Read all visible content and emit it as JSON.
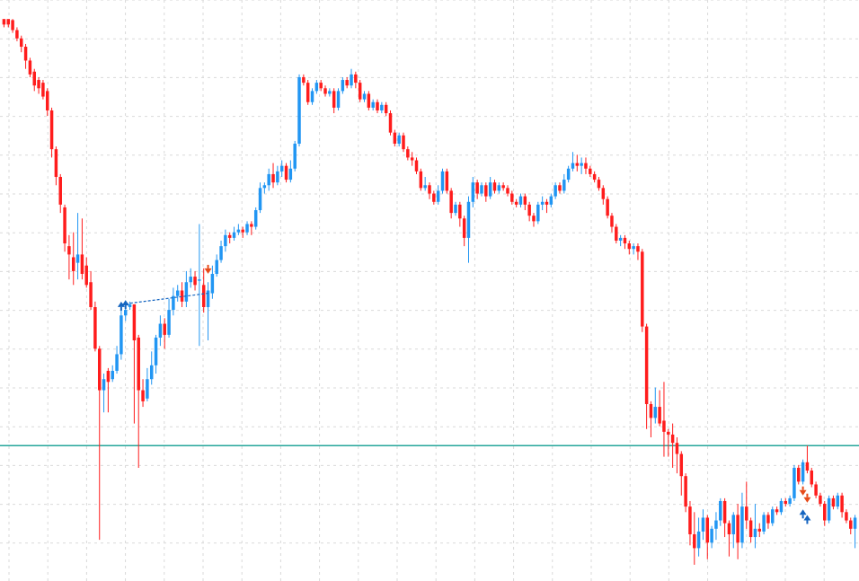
{
  "colors": {
    "background": "#ffffff",
    "grid": "#d9d9d9",
    "bull": "#2196f3",
    "bear": "#ff1c1c",
    "level_line": "#26a69a",
    "trade_line": "#1565c0",
    "buy_marker": "#1565c0",
    "sell_marker": "#e64a19"
  },
  "chart_data": {
    "type": "candlestick",
    "title": "",
    "xlabel": "",
    "ylabel": "",
    "grid": true,
    "y_range": [
      0.0,
      100.0
    ],
    "horizontal_level": 22.0,
    "candles": [
      [
        99.0,
        98.0,
        97.5,
        98.5
      ],
      [
        99.0,
        98.0,
        97.5,
        98.8
      ],
      [
        98.8,
        97.0,
        96.5,
        99.0
      ],
      [
        97.0,
        95.5,
        95.0,
        97.5
      ],
      [
        95.5,
        94.0,
        93.0,
        96.0
      ],
      [
        94.0,
        91.5,
        90.0,
        94.5
      ],
      [
        91.5,
        89.0,
        88.5,
        92.0
      ],
      [
        89.5,
        87.0,
        86.0,
        90.0
      ],
      [
        88.0,
        86.5,
        85.5,
        88.5
      ],
      [
        87.5,
        85.0,
        84.5,
        88.0
      ],
      [
        86.0,
        82.5,
        81.5,
        86.5
      ],
      [
        82.5,
        75.5,
        74.0,
        83.0
      ],
      [
        75.5,
        70.5,
        69.0,
        76.0
      ],
      [
        70.5,
        65.5,
        64.0,
        71.0
      ],
      [
        65.0,
        58.5,
        57.0,
        65.5
      ],
      [
        58.0,
        56.5,
        52.0,
        60.0
      ],
      [
        56.0,
        53.5,
        51.0,
        60.5
      ],
      [
        55.0,
        56.5,
        52.0,
        64.0
      ],
      [
        56.5,
        53.0,
        52.0,
        63.0
      ],
      [
        54.5,
        51.0,
        50.5,
        56.0
      ],
      [
        51.5,
        47.0,
        46.5,
        53.5
      ],
      [
        47.0,
        39.5,
        39.0,
        48.0
      ],
      [
        39.5,
        32.0,
        5.0,
        40.0
      ],
      [
        32.0,
        34.0,
        28.0,
        35.0
      ],
      [
        35.5,
        33.5,
        28.0,
        36.0
      ],
      [
        34.0,
        35.5,
        33.5,
        36.5
      ],
      [
        35.5,
        38.5,
        35.0,
        40.0
      ],
      [
        38.5,
        45.5,
        37.5,
        47.0
      ],
      [
        45.5,
        46.5,
        44.5,
        47.0
      ],
      [
        47.0,
        47.5,
        46.5,
        48.0
      ],
      [
        47.5,
        41.0,
        26.0,
        47.5
      ],
      [
        41.5,
        32.0,
        18.0,
        42.0
      ],
      [
        32.0,
        30.0,
        29.0,
        34.0
      ],
      [
        30.5,
        34.0,
        30.0,
        36.0
      ],
      [
        34.0,
        36.5,
        33.0,
        39.0
      ],
      [
        36.5,
        41.5,
        35.0,
        42.0
      ],
      [
        41.5,
        44.0,
        40.0,
        45.5
      ],
      [
        44.0,
        42.0,
        39.5,
        45.0
      ],
      [
        42.0,
        46.5,
        41.5,
        48.5
      ],
      [
        46.5,
        49.0,
        45.5,
        50.5
      ],
      [
        49.0,
        50.0,
        48.0,
        51.0
      ],
      [
        50.0,
        48.0,
        47.0,
        51.5
      ],
      [
        48.0,
        51.5,
        47.0,
        53.5
      ],
      [
        51.5,
        52.5,
        50.5,
        54.0
      ],
      [
        52.5,
        51.0,
        50.0,
        53.5
      ],
      [
        52.0,
        52.0,
        40.0,
        62.0
      ],
      [
        51.0,
        47.0,
        46.0,
        54.0
      ],
      [
        47.0,
        50.0,
        41.0,
        51.5
      ],
      [
        49.5,
        53.0,
        48.5,
        54.5
      ],
      [
        53.0,
        55.5,
        52.5,
        56.5
      ],
      [
        55.5,
        58.0,
        55.0,
        59.0
      ],
      [
        58.0,
        60.0,
        57.0,
        61.0
      ],
      [
        60.0,
        59.5,
        58.5,
        60.5
      ],
      [
        59.5,
        60.5,
        59.0,
        61.5
      ],
      [
        60.5,
        61.0,
        60.0,
        62.0
      ],
      [
        61.0,
        60.5,
        59.5,
        61.5
      ],
      [
        60.5,
        62.0,
        60.0,
        62.5
      ],
      [
        62.0,
        61.5,
        60.0,
        62.5
      ],
      [
        61.5,
        64.5,
        61.0,
        65.0
      ],
      [
        64.5,
        68.5,
        64.0,
        69.5
      ],
      [
        68.5,
        69.0,
        67.5,
        69.5
      ],
      [
        69.0,
        71.0,
        68.0,
        72.0
      ],
      [
        71.0,
        69.5,
        68.5,
        73.0
      ],
      [
        69.5,
        71.5,
        69.0,
        72.5
      ],
      [
        71.5,
        72.5,
        70.5,
        73.5
      ],
      [
        72.5,
        70.0,
        69.5,
        73.0
      ],
      [
        70.0,
        72.0,
        69.5,
        73.5
      ],
      [
        72.0,
        76.5,
        71.5,
        77.0
      ],
      [
        76.5,
        88.5,
        76.0,
        89.0
      ],
      [
        88.5,
        87.5,
        87.0,
        89.0
      ],
      [
        87.5,
        84.0,
        83.5,
        88.0
      ],
      [
        84.0,
        86.0,
        83.5,
        86.5
      ],
      [
        86.0,
        87.5,
        85.5,
        88.0
      ],
      [
        87.5,
        86.5,
        86.0,
        88.0
      ],
      [
        86.5,
        85.5,
        85.0,
        87.0
      ],
      [
        85.5,
        86.0,
        85.0,
        86.5
      ],
      [
        86.0,
        83.0,
        82.0,
        86.5
      ],
      [
        83.0,
        86.0,
        82.5,
        86.5
      ],
      [
        86.0,
        88.0,
        85.5,
        88.5
      ],
      [
        88.0,
        87.0,
        86.5,
        88.5
      ],
      [
        87.0,
        89.0,
        86.5,
        90.0
      ],
      [
        89.0,
        87.5,
        86.5,
        89.5
      ],
      [
        87.5,
        84.5,
        84.0,
        88.0
      ],
      [
        84.5,
        85.5,
        84.0,
        86.0
      ],
      [
        85.5,
        83.0,
        82.5,
        86.0
      ],
      [
        83.0,
        84.0,
        82.5,
        84.5
      ],
      [
        84.0,
        82.5,
        82.0,
        84.5
      ],
      [
        82.5,
        83.5,
        82.0,
        84.0
      ],
      [
        83.5,
        82.0,
        81.5,
        84.0
      ],
      [
        82.0,
        78.5,
        78.0,
        82.5
      ],
      [
        78.5,
        76.5,
        76.0,
        79.0
      ],
      [
        76.5,
        78.0,
        76.0,
        78.5
      ],
      [
        78.0,
        75.5,
        75.0,
        78.5
      ],
      [
        75.5,
        74.0,
        73.5,
        76.0
      ],
      [
        74.0,
        73.5,
        72.5,
        75.0
      ],
      [
        73.5,
        71.5,
        71.0,
        74.0
      ],
      [
        71.5,
        68.5,
        68.0,
        72.0
      ],
      [
        68.5,
        69.0,
        68.0,
        70.5
      ],
      [
        69.0,
        67.5,
        66.5,
        69.5
      ],
      [
        67.5,
        66.0,
        65.5,
        68.0
      ],
      [
        66.0,
        68.0,
        65.5,
        69.0
      ],
      [
        68.0,
        71.5,
        67.5,
        72.0
      ],
      [
        71.5,
        68.0,
        67.5,
        72.0
      ],
      [
        68.0,
        64.0,
        63.0,
        68.5
      ],
      [
        64.0,
        65.5,
        63.5,
        66.0
      ],
      [
        65.5,
        63.0,
        61.5,
        66.0
      ],
      [
        63.0,
        59.5,
        58.0,
        63.5
      ],
      [
        59.5,
        66.0,
        55.0,
        67.0
      ],
      [
        66.0,
        69.5,
        65.0,
        70.5
      ],
      [
        69.5,
        67.5,
        66.5,
        70.0
      ],
      [
        67.5,
        69.0,
        67.0,
        69.5
      ],
      [
        69.0,
        67.0,
        66.0,
        69.5
      ],
      [
        67.0,
        69.5,
        66.5,
        70.5
      ],
      [
        69.5,
        68.0,
        67.5,
        70.0
      ],
      [
        68.0,
        69.0,
        67.5,
        69.5
      ],
      [
        69.0,
        68.5,
        68.0,
        69.5
      ],
      [
        68.5,
        67.5,
        67.0,
        69.0
      ],
      [
        67.5,
        66.0,
        65.5,
        68.0
      ],
      [
        66.0,
        65.5,
        65.0,
        66.5
      ],
      [
        65.5,
        67.0,
        65.0,
        67.5
      ],
      [
        67.0,
        65.5,
        64.5,
        67.5
      ],
      [
        65.5,
        63.5,
        62.5,
        66.0
      ],
      [
        63.5,
        62.5,
        61.5,
        64.0
      ],
      [
        62.5,
        65.5,
        62.0,
        66.0
      ],
      [
        65.5,
        66.0,
        64.5,
        67.0
      ],
      [
        66.0,
        65.5,
        64.0,
        66.5
      ],
      [
        65.5,
        67.0,
        65.0,
        67.5
      ],
      [
        67.0,
        69.0,
        66.5,
        69.5
      ],
      [
        69.0,
        68.0,
        67.5,
        69.5
      ],
      [
        68.0,
        70.0,
        67.5,
        71.0
      ],
      [
        70.0,
        72.0,
        69.5,
        72.5
      ],
      [
        72.0,
        73.0,
        71.5,
        75.0
      ],
      [
        73.0,
        72.5,
        71.5,
        74.5
      ],
      [
        72.5,
        73.0,
        71.0,
        74.0
      ],
      [
        73.0,
        72.0,
        71.0,
        74.0
      ],
      [
        72.0,
        71.0,
        70.5,
        72.5
      ],
      [
        71.0,
        70.0,
        69.5,
        71.5
      ],
      [
        70.0,
        68.5,
        68.0,
        70.5
      ],
      [
        68.5,
        66.5,
        65.5,
        69.0
      ],
      [
        66.5,
        63.5,
        63.0,
        67.0
      ],
      [
        63.5,
        61.5,
        60.5,
        64.0
      ],
      [
        61.5,
        59.0,
        58.5,
        62.0
      ],
      [
        59.0,
        59.5,
        58.0,
        60.0
      ],
      [
        59.5,
        58.5,
        57.5,
        60.0
      ],
      [
        58.5,
        57.5,
        56.5,
        59.0
      ],
      [
        57.5,
        58.0,
        56.5,
        58.5
      ],
      [
        58.0,
        57.0,
        55.5,
        58.5
      ],
      [
        57.0,
        43.5,
        42.5,
        57.5
      ],
      [
        43.5,
        29.5,
        25.0,
        44.0
      ],
      [
        29.5,
        27.0,
        23.5,
        30.0
      ],
      [
        27.0,
        29.0,
        26.0,
        32.5
      ],
      [
        29.0,
        26.0,
        25.5,
        32.0
      ],
      [
        26.5,
        24.5,
        20.0,
        33.5
      ],
      [
        24.5,
        24.0,
        20.0,
        25.0
      ],
      [
        24.0,
        22.5,
        18.0,
        26.0
      ],
      [
        22.5,
        20.5,
        17.0,
        23.5
      ],
      [
        20.5,
        16.5,
        13.0,
        21.0
      ],
      [
        16.5,
        11.0,
        10.0,
        17.0
      ],
      [
        11.0,
        6.0,
        4.0,
        12.0
      ],
      [
        6.0,
        3.5,
        0.5,
        10.0
      ],
      [
        3.5,
        6.5,
        2.0,
        9.0
      ],
      [
        6.5,
        9.0,
        5.0,
        10.5
      ],
      [
        9.0,
        4.5,
        1.5,
        9.5
      ],
      [
        4.5,
        7.0,
        3.5,
        7.5
      ],
      [
        7.0,
        8.5,
        5.0,
        10.0
      ],
      [
        8.5,
        12.0,
        7.5,
        12.5
      ],
      [
        12.0,
        8.0,
        5.5,
        12.5
      ],
      [
        8.0,
        6.0,
        2.0,
        8.5
      ],
      [
        6.0,
        9.5,
        3.5,
        10.0
      ],
      [
        9.5,
        4.5,
        1.5,
        11.5
      ],
      [
        4.5,
        11.0,
        3.5,
        13.5
      ],
      [
        11.0,
        8.5,
        7.0,
        15.5
      ],
      [
        8.5,
        5.5,
        4.5,
        9.0
      ],
      [
        5.5,
        7.0,
        3.5,
        11.5
      ],
      [
        7.0,
        6.5,
        5.5,
        8.0
      ],
      [
        6.5,
        9.5,
        6.0,
        10.0
      ],
      [
        9.5,
        8.0,
        7.0,
        10.0
      ],
      [
        8.0,
        10.5,
        7.5,
        11.0
      ],
      [
        10.5,
        10.0,
        9.5,
        11.0
      ],
      [
        10.0,
        12.0,
        9.5,
        12.5
      ],
      [
        12.0,
        11.5,
        11.0,
        12.5
      ],
      [
        11.5,
        12.5,
        11.0,
        13.0
      ],
      [
        12.5,
        18.0,
        12.0,
        18.5
      ],
      [
        18.0,
        15.5,
        15.0,
        18.5
      ],
      [
        15.5,
        19.0,
        15.0,
        19.5
      ],
      [
        19.0,
        17.5,
        17.0,
        22.0
      ],
      [
        17.5,
        15.0,
        14.5,
        18.0
      ],
      [
        15.0,
        13.0,
        12.5,
        15.5
      ],
      [
        13.0,
        11.5,
        11.0,
        13.5
      ],
      [
        11.5,
        8.5,
        7.5,
        12.0
      ],
      [
        8.5,
        12.5,
        8.0,
        13.0
      ],
      [
        12.5,
        11.0,
        10.5,
        13.0
      ],
      [
        11.0,
        13.0,
        10.5,
        13.5
      ],
      [
        13.0,
        10.0,
        9.0,
        13.5
      ],
      [
        10.0,
        8.5,
        8.0,
        10.5
      ],
      [
        8.5,
        7.0,
        6.0,
        9.0
      ],
      [
        7.0,
        9.0,
        3.5,
        9.5
      ]
    ],
    "trade_markers": [
      {
        "type": "buy",
        "candle": 27,
        "price": 47.5
      },
      {
        "type": "buy",
        "candle": 28,
        "price": 47.8
      },
      {
        "type": "sell",
        "candle": 47,
        "price": 53.5
      },
      {
        "type": "buy",
        "candle": 184,
        "price": 10.0
      },
      {
        "type": "buy",
        "candle": 185,
        "price": 9.0
      },
      {
        "type": "sell",
        "candle": 184,
        "price": 13.5
      },
      {
        "type": "sell",
        "candle": 185,
        "price": 12.2
      }
    ],
    "trade_lines": [
      {
        "from_candle": 27,
        "from_price": 47.5,
        "to_candle": 47,
        "to_price": 49.5
      }
    ]
  }
}
